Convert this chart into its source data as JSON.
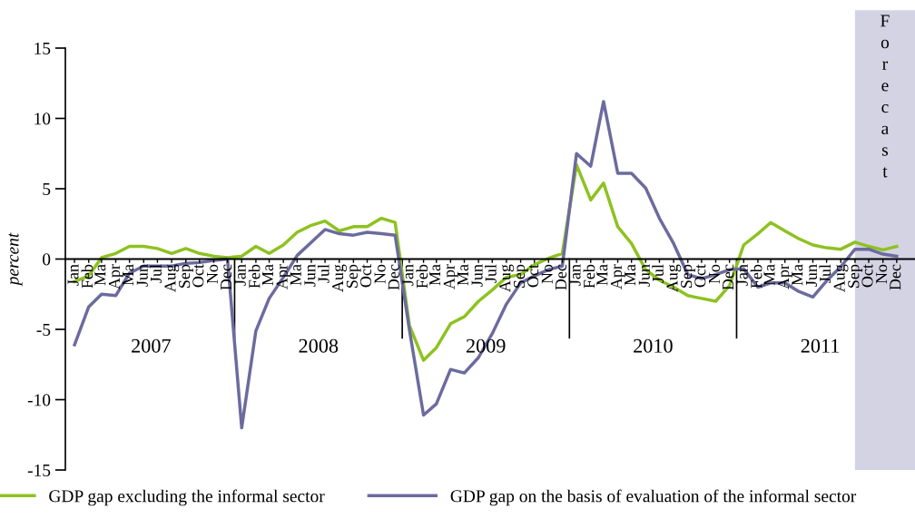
{
  "chart_data": {
    "type": "line",
    "ylabel": "percent",
    "x": [
      "2007-01",
      "2007-02",
      "2007-03",
      "2007-04",
      "2007-05",
      "2007-06",
      "2007-07",
      "2007-08",
      "2007-09",
      "2007-10",
      "2007-11",
      "2007-12",
      "2008-01",
      "2008-02",
      "2008-03",
      "2008-04",
      "2008-05",
      "2008-06",
      "2008-07",
      "2008-08",
      "2008-09",
      "2008-10",
      "2008-11",
      "2008-12",
      "2009-01",
      "2009-02",
      "2009-03",
      "2009-04",
      "2009-05",
      "2009-06",
      "2009-07",
      "2009-08",
      "2009-09",
      "2009-10",
      "2009-11",
      "2009-12",
      "2010-01",
      "2010-02",
      "2010-03",
      "2010-04",
      "2010-05",
      "2010-06",
      "2010-07",
      "2010-08",
      "2010-09",
      "2010-10",
      "2010-11",
      "2010-12",
      "2011-01",
      "2011-02",
      "2011-03",
      "2011-04",
      "2011-05",
      "2011-06",
      "2011-07",
      "2011-08",
      "2011-09",
      "2011-10",
      "2011-11",
      "2011-12"
    ],
    "series": [
      {
        "name": "GDP gap excluding the informal sector",
        "color": "#8dc21f",
        "values": [
          -1.6,
          -1.2,
          0.1,
          0.4,
          0.9,
          0.9,
          0.75,
          0.4,
          0.75,
          0.4,
          0.2,
          0.1,
          0.2,
          0.9,
          0.4,
          1.0,
          1.9,
          2.4,
          2.7,
          2.0,
          2.3,
          2.3,
          2.9,
          2.6,
          -4.7,
          -7.2,
          -6.3,
          -4.6,
          -4.1,
          -3.0,
          -2.2,
          -1.3,
          -1.1,
          -0.4,
          0.05,
          0.4,
          6.7,
          4.2,
          5.4,
          2.3,
          1.1,
          -0.75,
          -1.5,
          -2.0,
          -2.6,
          -2.8,
          -3.0,
          -1.9,
          1.0,
          1.8,
          2.6,
          2.0,
          1.45,
          1.0,
          0.8,
          0.7,
          1.2,
          0.9,
          0.65,
          0.9
        ]
      },
      {
        "name": "GDP gap on the basis of evaluation of the informal sector",
        "color": "#6b6b9e",
        "values": [
          -6.1,
          -3.4,
          -2.5,
          -2.6,
          -1.0,
          -0.5,
          -0.5,
          -0.5,
          -0.3,
          -0.25,
          -0.1,
          0.0,
          -12.0,
          -5.1,
          -2.8,
          -1.3,
          0.25,
          1.2,
          2.1,
          1.8,
          1.7,
          1.9,
          1.8,
          1.7,
          -5.0,
          -11.1,
          -10.3,
          -7.85,
          -8.1,
          -7.0,
          -5.3,
          -3.2,
          -1.7,
          -1.2,
          -0.75,
          -0.5,
          7.5,
          6.6,
          11.2,
          6.1,
          6.1,
          5.05,
          2.9,
          1.1,
          -1.1,
          -1.4,
          -1.1,
          -0.75,
          -0.7,
          -2.0,
          -1.7,
          -1.7,
          -2.3,
          -2.7,
          -1.55,
          -0.55,
          0.7,
          0.7,
          0.35,
          0.2
        ]
      }
    ],
    "xlim": [
      "2006-12-12",
      "2012-01-10"
    ],
    "xticks": [
      {
        "value": "2007-01",
        "label": "Jan"
      },
      {
        "value": "2007-02",
        "label": "Feb"
      },
      {
        "value": "2007-03",
        "label": "Ma"
      },
      {
        "value": "2007-04",
        "label": "Apr"
      },
      {
        "value": "2007-05",
        "label": "Ma"
      },
      {
        "value": "2007-06",
        "label": "Jun"
      },
      {
        "value": "2007-07",
        "label": "Jul"
      },
      {
        "value": "2007-08",
        "label": "Aug"
      },
      {
        "value": "2007-09",
        "label": "Sep"
      },
      {
        "value": "2007-10",
        "label": "Oct"
      },
      {
        "value": "2007-11",
        "label": "No"
      },
      {
        "value": "2007-12",
        "label": "Dec"
      },
      {
        "value": "2008-01",
        "label": "Jan"
      },
      {
        "value": "2008-02",
        "label": "Feb"
      },
      {
        "value": "2008-03",
        "label": "Ma"
      },
      {
        "value": "2008-04",
        "label": "Apr"
      },
      {
        "value": "2008-05",
        "label": "Ma"
      },
      {
        "value": "2008-06",
        "label": "Jun"
      },
      {
        "value": "2008-07",
        "label": "Jul"
      },
      {
        "value": "2008-08",
        "label": "Aug"
      },
      {
        "value": "2008-09",
        "label": "Sep"
      },
      {
        "value": "2008-10",
        "label": "Oct"
      },
      {
        "value": "2008-11",
        "label": "No"
      },
      {
        "value": "2008-12",
        "label": "Dec"
      },
      {
        "value": "2009-01",
        "label": "Jan"
      },
      {
        "value": "2009-02",
        "label": "Feb"
      },
      {
        "value": "2009-03",
        "label": "Ma"
      },
      {
        "value": "2009-04",
        "label": "Apr"
      },
      {
        "value": "2009-05",
        "label": "Ma"
      },
      {
        "value": "2009-06",
        "label": "Jun"
      },
      {
        "value": "2009-07",
        "label": "Jul"
      },
      {
        "value": "2009-08",
        "label": "Aug"
      },
      {
        "value": "2009-09",
        "label": "Sep"
      },
      {
        "value": "2009-10",
        "label": "Oct"
      },
      {
        "value": "2009-11",
        "label": "No"
      },
      {
        "value": "2009-12",
        "label": "Dec"
      },
      {
        "value": "2010-01",
        "label": "Jan"
      },
      {
        "value": "2010-02",
        "label": "Feb"
      },
      {
        "value": "2010-03",
        "label": "Ma"
      },
      {
        "value": "2010-04",
        "label": "Apr"
      },
      {
        "value": "2010-05",
        "label": "Ma"
      },
      {
        "value": "2010-06",
        "label": "Jun"
      },
      {
        "value": "2010-07",
        "label": "Jul"
      },
      {
        "value": "2010-08",
        "label": "Aug"
      },
      {
        "value": "2010-09",
        "label": "Sep"
      },
      {
        "value": "2010-10",
        "label": "Oct"
      },
      {
        "value": "2010-11",
        "label": "No"
      },
      {
        "value": "2010-12",
        "label": "Dec"
      },
      {
        "value": "2011-01",
        "label": "Jan"
      },
      {
        "value": "2011-02",
        "label": "Feb"
      },
      {
        "value": "2011-03",
        "label": "Ma"
      },
      {
        "value": "2011-04",
        "label": "Apr"
      },
      {
        "value": "2011-05",
        "label": "Ma"
      },
      {
        "value": "2011-06",
        "label": "Jun"
      },
      {
        "value": "2011-07",
        "label": "Jul"
      },
      {
        "value": "2011-08",
        "label": "Aug"
      },
      {
        "value": "2011-09",
        "label": "Sep"
      },
      {
        "value": "2011-10",
        "label": "Oct"
      },
      {
        "value": "2011-11",
        "label": "No"
      },
      {
        "value": "2011-12",
        "label": "Dec"
      }
    ],
    "ylim": [
      -15,
      15
    ],
    "yticks": [
      -15,
      -10,
      -5,
      0,
      5,
      10,
      15
    ],
    "annotations": [
      "2007",
      "2008",
      "2009",
      "2010",
      "2011"
    ],
    "bands": [
      {
        "axis": "x",
        "from": "2011-09",
        "to": "2012-01-10",
        "label": "Forecast",
        "color": "#d4d3e4"
      }
    ],
    "grid": false,
    "legend": "bottom",
    "marker": "none",
    "line_style": "solid"
  }
}
